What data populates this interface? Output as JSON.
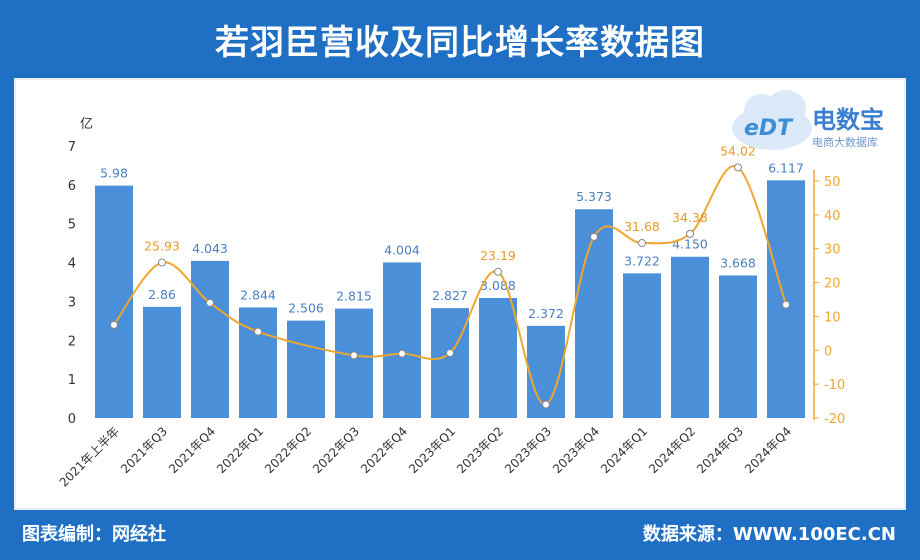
{
  "header": {
    "title": "若羽臣营收及同比增长率数据图"
  },
  "footer": {
    "left": "图表编制：网经社",
    "right": "数据来源：WWW.100EC.CN"
  },
  "logo": {
    "brand": "电数宝",
    "sub": "电商大数据库",
    "mark": "eDT"
  },
  "colors": {
    "bar": "#4a8fd8",
    "line": "#f0a630",
    "frame": "#1f6fc4",
    "bar_label": "#4a7fc0",
    "line_label": "#e89b24"
  },
  "chart_data": {
    "type": "bar",
    "categories": [
      "2021年上半年",
      "2021年Q3",
      "2021年Q4",
      "2022年Q1",
      "2022年Q2",
      "2022年Q3",
      "2022年Q4",
      "2023年Q1",
      "2023年Q2",
      "2023年Q3",
      "2023年Q4",
      "2024年Q1",
      "2024年Q2",
      "2024年Q3",
      "2024年Q4"
    ],
    "series": [
      {
        "name": "",
        "type": "bar",
        "axis": "left",
        "values": [
          5.98,
          2.86,
          4.043,
          2.844,
          2.506,
          2.815,
          4.004,
          2.827,
          3.088,
          2.372,
          5.373,
          3.722,
          4.15,
          3.668,
          6.117
        ],
        "labels": [
          "5.98",
          "2.86",
          "4.043",
          "2.844",
          "2.506",
          "2.815",
          "4.004",
          "2.827",
          "3.088",
          "2.372",
          "5.373",
          "3.722",
          "4.150",
          "3.668",
          "6.117"
        ]
      },
      {
        "name": "",
        "type": "line",
        "axis": "right",
        "values": [
          7.5,
          25.93,
          14,
          5.5,
          null,
          -1.5,
          -1.0,
          -0.8,
          23.19,
          -16.0,
          33.5,
          31.68,
          34.38,
          54.02,
          13.5
        ],
        "labels": [
          "",
          "25.93",
          "",
          "",
          "",
          "",
          "",
          "",
          "23.19",
          "",
          "",
          "31.68",
          "34.38",
          "54.02",
          ""
        ]
      }
    ],
    "left_axis": {
      "unit": "亿",
      "ticks": [
        "0",
        "1",
        "2",
        "3",
        "4",
        "5",
        "6",
        "7"
      ],
      "range": [
        0,
        7
      ]
    },
    "right_axis": {
      "ticks": [
        "-20",
        "-10",
        "0",
        "10",
        "20",
        "30",
        "40",
        "50"
      ],
      "range": [
        -20,
        60
      ]
    },
    "grid": false,
    "legend": "none"
  }
}
